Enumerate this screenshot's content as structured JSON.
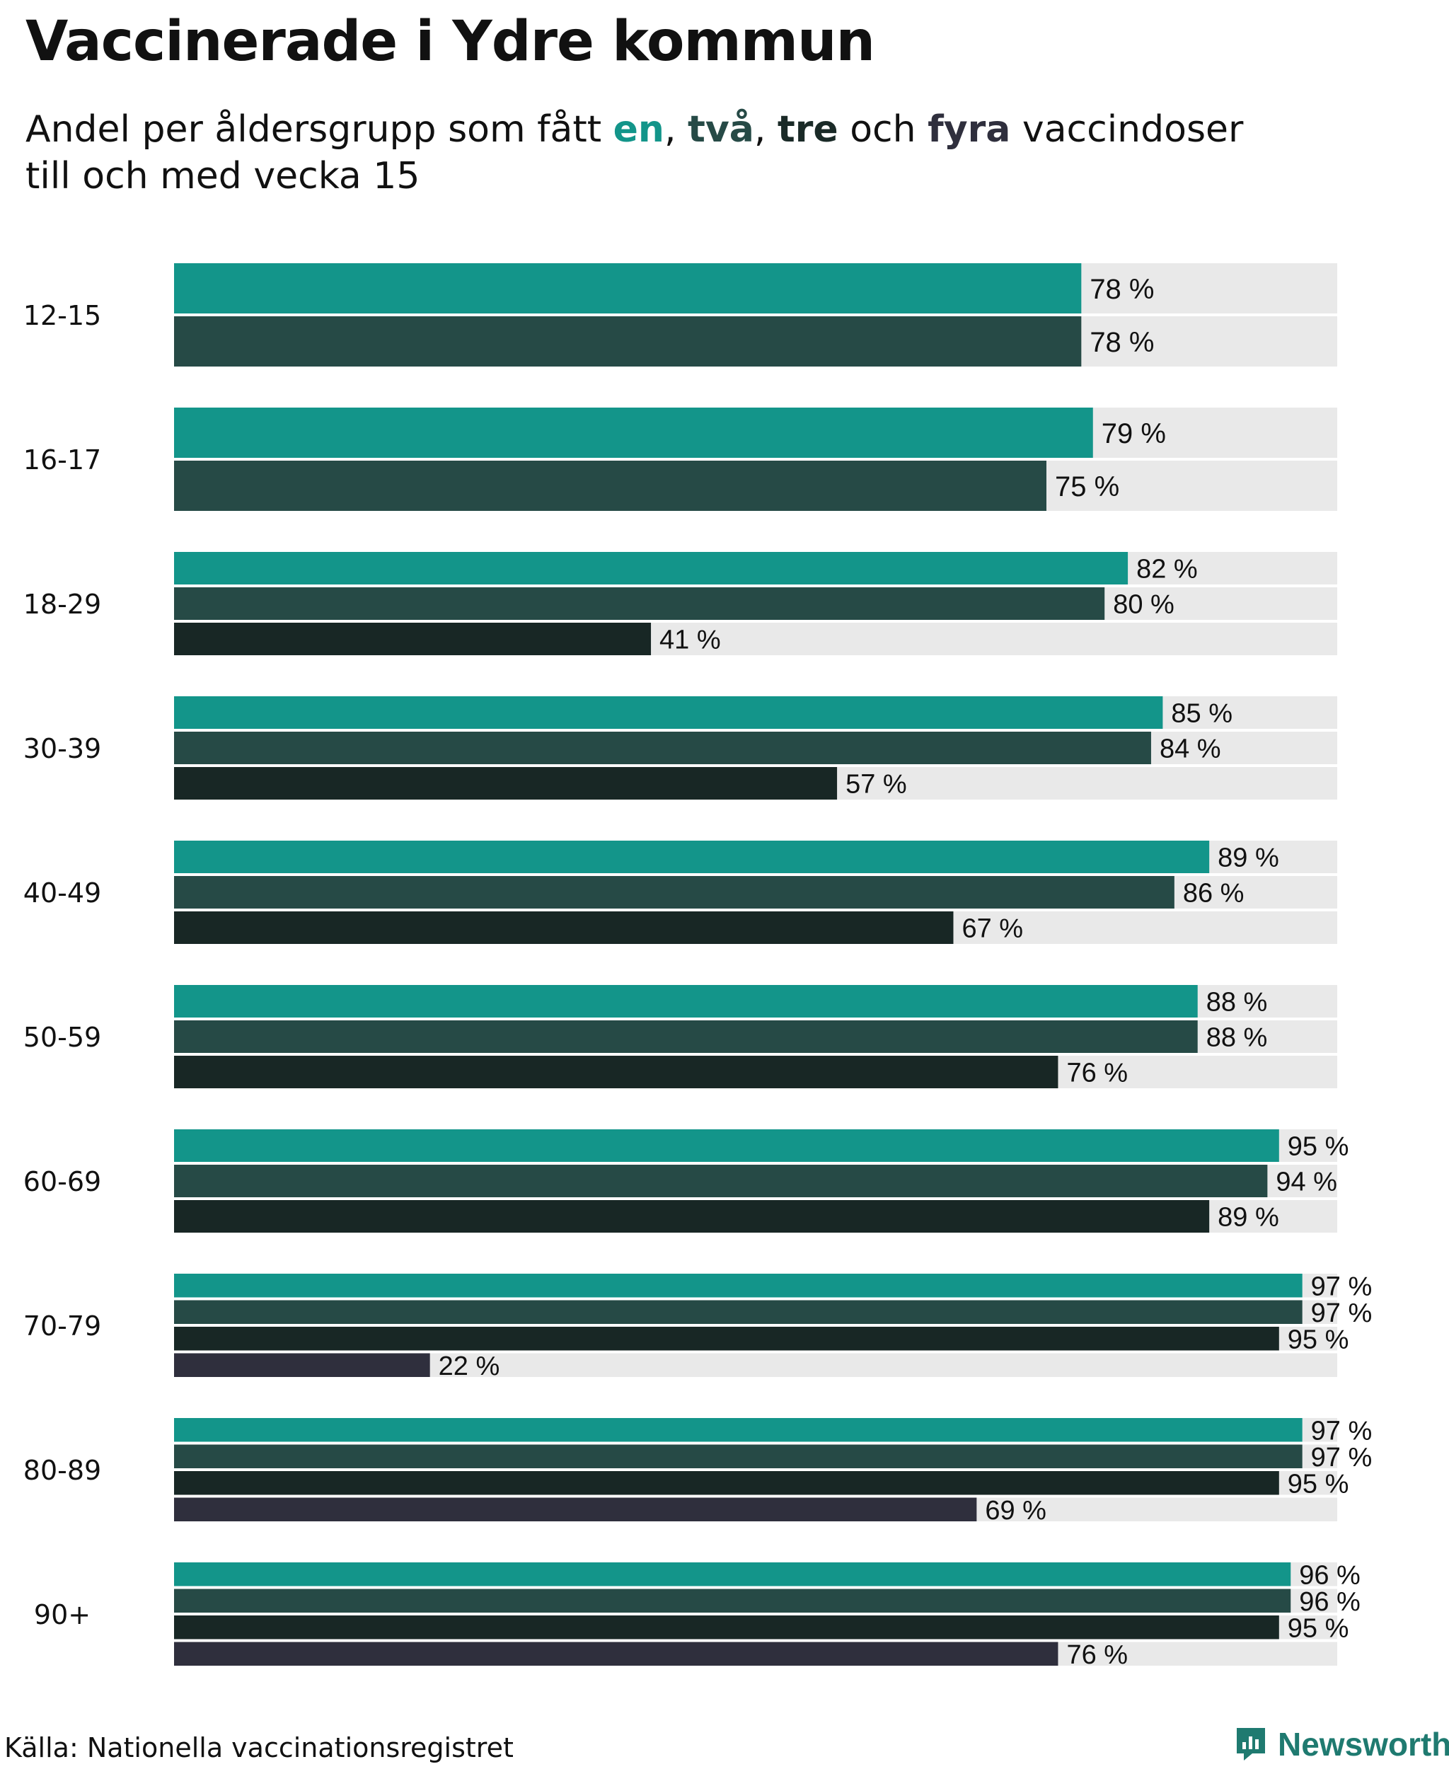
{
  "title": "Vaccinerade i Ydre kommun",
  "subtitle": {
    "prefix": "Andel per åldersgrupp som fått ",
    "k1": "en",
    "sep1": ", ",
    "k2": "två",
    "sep2": ", ",
    "k3": "tre",
    "mid": " och ",
    "k4": "fyra",
    "suffix": " vaccindoser",
    "line2": "till och med vecka 15"
  },
  "source": "Källa: Nationella vaccinationsregistret",
  "brand": "Newsworthy",
  "colors": {
    "dose1": "#13958a",
    "dose2": "#264a46",
    "dose3": "#182725",
    "dose4": "#2f2f3d",
    "track": "#e9e9e9"
  },
  "chart_data": {
    "type": "bar",
    "orientation": "horizontal",
    "title": "Vaccinerade i Ydre kommun",
    "subtitle": "Andel per åldersgrupp som fått en, två, tre och fyra vaccindoser till och med vecka 15",
    "categories": [
      "12-15",
      "16-17",
      "18-29",
      "30-39",
      "40-49",
      "50-59",
      "60-69",
      "70-79",
      "80-89",
      "90+"
    ],
    "series": [
      {
        "name": "en",
        "values": [
          78,
          79,
          82,
          85,
          89,
          88,
          95,
          97,
          97,
          96
        ]
      },
      {
        "name": "två",
        "values": [
          78,
          75,
          80,
          84,
          86,
          88,
          94,
          97,
          97,
          96
        ]
      },
      {
        "name": "tre",
        "values": [
          null,
          null,
          41,
          57,
          67,
          76,
          89,
          95,
          95,
          95
        ]
      },
      {
        "name": "fyra",
        "values": [
          null,
          null,
          null,
          null,
          null,
          null,
          null,
          22,
          69,
          76
        ]
      }
    ],
    "value_suffix": " %",
    "xlim": [
      0,
      100
    ],
    "xlabel": "",
    "ylabel": "",
    "legend": "in subtitle"
  }
}
